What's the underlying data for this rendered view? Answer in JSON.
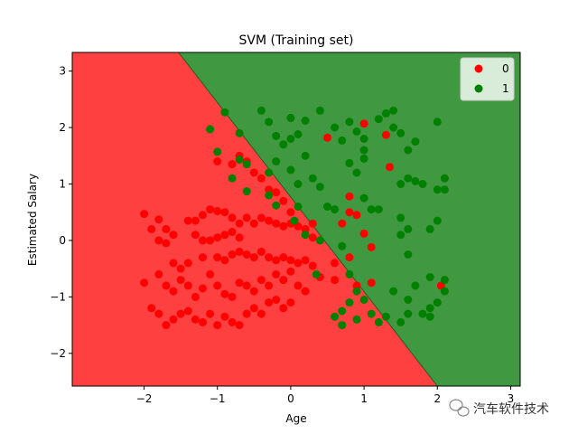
{
  "chart_data": {
    "type": "scatter",
    "title": "SVM (Training set)",
    "xlabel": "Age",
    "ylabel": "Estimated Salary",
    "xlim": [
      -2.98,
      3.13
    ],
    "ylim": [
      -2.58,
      3.33
    ],
    "x_ticks": [
      -2,
      -1,
      0,
      1,
      2,
      3
    ],
    "y_ticks": [
      -2,
      -1,
      0,
      1,
      2,
      3
    ],
    "x_tick_labels": [
      "−2",
      "−1",
      "0",
      "1",
      "2",
      "3"
    ],
    "y_tick_labels": [
      "−2",
      "−1",
      "0",
      "1",
      "2",
      "3"
    ],
    "legend_position": "top-right",
    "decision_boundary": {
      "type": "linear",
      "points": [
        [
          -1.53,
          3.33
        ],
        [
          2.0,
          -2.58
        ]
      ]
    },
    "regions": [
      {
        "class": "0",
        "color": "#ff4040",
        "side": "lower-left"
      },
      {
        "class": "1",
        "color": "#409940",
        "side": "upper-right"
      }
    ],
    "series": [
      {
        "name": "0",
        "color": "#ff0000",
        "points": [
          [
            -2.0,
            0.47
          ],
          [
            -1.8,
            0.37
          ],
          [
            -1.9,
            0.2
          ],
          [
            -1.7,
            0.2
          ],
          [
            -1.6,
            0.1
          ],
          [
            -1.4,
            0.35
          ],
          [
            -1.3,
            0.35
          ],
          [
            -1.2,
            0.45
          ],
          [
            -1.1,
            0.55
          ],
          [
            -1.0,
            0.52
          ],
          [
            -0.9,
            0.5
          ],
          [
            -0.8,
            0.4
          ],
          [
            -0.7,
            0.3
          ],
          [
            -1.3,
            0.1
          ],
          [
            -1.2,
            0.0
          ],
          [
            -1.1,
            0.0
          ],
          [
            -1.0,
            0.05
          ],
          [
            -0.9,
            0.1
          ],
          [
            -0.8,
            0.15
          ],
          [
            -0.7,
            0.05
          ],
          [
            -0.6,
            0.4
          ],
          [
            -0.5,
            0.3
          ],
          [
            -0.4,
            0.4
          ],
          [
            -0.3,
            0.35
          ],
          [
            -0.2,
            0.3
          ],
          [
            -0.1,
            0.25
          ],
          [
            0.0,
            0.3
          ],
          [
            0.1,
            0.25
          ],
          [
            0.2,
            0.2
          ],
          [
            0.3,
            0.3
          ],
          [
            -1.8,
            0.0
          ],
          [
            -1.7,
            -0.05
          ],
          [
            -1.6,
            -0.4
          ],
          [
            -1.5,
            -0.5
          ],
          [
            -1.4,
            -0.4
          ],
          [
            -1.2,
            -0.3
          ],
          [
            -1.0,
            -0.3
          ],
          [
            -0.9,
            -0.35
          ],
          [
            -0.8,
            -0.25
          ],
          [
            -0.7,
            -0.2
          ],
          [
            -0.6,
            -0.25
          ],
          [
            -0.5,
            -0.3
          ],
          [
            -0.4,
            -0.2
          ],
          [
            -0.3,
            -0.3
          ],
          [
            -0.2,
            -0.35
          ],
          [
            -0.1,
            -0.3
          ],
          [
            0.0,
            -0.35
          ],
          [
            0.1,
            -0.4
          ],
          [
            0.2,
            -0.35
          ],
          [
            0.3,
            -0.45
          ],
          [
            -2.0,
            -0.75
          ],
          [
            -1.8,
            -0.6
          ],
          [
            -1.7,
            -0.8
          ],
          [
            -1.6,
            -0.9
          ],
          [
            -1.5,
            -0.7
          ],
          [
            -1.4,
            -0.8
          ],
          [
            -1.3,
            -1.0
          ],
          [
            -1.2,
            -0.85
          ],
          [
            -1.1,
            -0.6
          ],
          [
            -1.0,
            -0.8
          ],
          [
            -0.9,
            -0.95
          ],
          [
            -0.8,
            -1.0
          ],
          [
            -0.7,
            -0.75
          ],
          [
            -0.6,
            -0.8
          ],
          [
            -0.5,
            -0.9
          ],
          [
            -0.4,
            -0.7
          ],
          [
            -0.3,
            -0.8
          ],
          [
            -0.2,
            -0.6
          ],
          [
            -0.1,
            -0.7
          ],
          [
            0.0,
            -0.55
          ],
          [
            -1.9,
            -1.2
          ],
          [
            -1.8,
            -1.3
          ],
          [
            -1.7,
            -1.5
          ],
          [
            -1.6,
            -1.4
          ],
          [
            -1.5,
            -1.3
          ],
          [
            -1.4,
            -1.25
          ],
          [
            -1.3,
            -1.4
          ],
          [
            -1.2,
            -1.45
          ],
          [
            -1.1,
            -1.3
          ],
          [
            -1.0,
            -1.5
          ],
          [
            -0.9,
            -1.35
          ],
          [
            -0.8,
            -1.45
          ],
          [
            -0.7,
            -1.5
          ],
          [
            -0.6,
            -1.3
          ],
          [
            -0.5,
            -1.2
          ],
          [
            -0.4,
            -1.3
          ],
          [
            -0.3,
            -1.1
          ],
          [
            -0.2,
            -1.05
          ],
          [
            -0.1,
            -1.2
          ],
          [
            0.0,
            -1.1
          ],
          [
            -1.0,
            1.4
          ],
          [
            -0.8,
            1.35
          ],
          [
            -0.7,
            1.5
          ],
          [
            -0.6,
            1.4
          ],
          [
            -0.5,
            1.2
          ],
          [
            -0.4,
            1.1
          ],
          [
            -0.3,
            0.9
          ],
          [
            -0.2,
            0.85
          ],
          [
            -0.1,
            0.7
          ],
          [
            0.0,
            0.5
          ],
          [
            0.1,
            -0.8
          ],
          [
            0.2,
            -0.9
          ],
          [
            0.4,
            -0.65
          ],
          [
            0.6,
            -0.7
          ],
          [
            0.8,
            -0.3
          ],
          [
            0.9,
            -0.8
          ],
          [
            1.1,
            -0.75
          ],
          [
            0.7,
            0.3
          ],
          [
            0.8,
            0.5
          ],
          [
            0.8,
            0.78
          ],
          [
            0.9,
            0.45
          ],
          [
            1.0,
            0.12
          ],
          [
            1.1,
            -0.12
          ],
          [
            0.5,
            1.82
          ],
          [
            1.0,
            2.07
          ],
          [
            1.3,
            1.87
          ],
          [
            1.35,
            1.3
          ],
          [
            2.05,
            -0.8
          ],
          [
            0.6,
            -0.4
          ],
          [
            0.3,
            0.05
          ]
        ]
      },
      {
        "name": "1",
        "color": "#008000",
        "points": [
          [
            -1.1,
            1.97
          ],
          [
            -0.9,
            2.27
          ],
          [
            -0.7,
            1.9
          ],
          [
            -1.0,
            1.57
          ],
          [
            -0.7,
            1.43
          ],
          [
            -0.6,
            1.35
          ],
          [
            -0.8,
            1.1
          ],
          [
            -0.6,
            0.87
          ],
          [
            -0.4,
            2.3
          ],
          [
            -0.3,
            2.1
          ],
          [
            -0.2,
            1.85
          ],
          [
            -0.1,
            1.7
          ],
          [
            0.0,
            1.8
          ],
          [
            -0.2,
            1.4
          ],
          [
            -0.3,
            1.2
          ],
          [
            0.0,
            1.25
          ],
          [
            0.1,
            1.0
          ],
          [
            -0.3,
            0.8
          ],
          [
            -0.2,
            0.62
          ],
          [
            0.1,
            0.6
          ],
          [
            0.0,
            2.17
          ],
          [
            0.1,
            1.88
          ],
          [
            0.2,
            2.12
          ],
          [
            0.4,
            2.3
          ],
          [
            0.2,
            1.5
          ],
          [
            0.3,
            1.1
          ],
          [
            0.4,
            0.95
          ],
          [
            0.5,
            0.6
          ],
          [
            0.6,
            2.0
          ],
          [
            0.7,
            1.77
          ],
          [
            0.8,
            2.1
          ],
          [
            0.9,
            1.93
          ],
          [
            1.0,
            1.8
          ],
          [
            1.0,
            1.6
          ],
          [
            0.8,
            1.37
          ],
          [
            1.0,
            1.45
          ],
          [
            0.9,
            1.2
          ],
          [
            1.2,
            2.15
          ],
          [
            1.4,
            2.0
          ],
          [
            1.5,
            1.9
          ],
          [
            1.6,
            1.6
          ],
          [
            1.7,
            1.75
          ],
          [
            2.0,
            2.1
          ],
          [
            1.3,
            2.25
          ],
          [
            1.4,
            2.3
          ],
          [
            1.5,
            1.0
          ],
          [
            1.6,
            1.1
          ],
          [
            1.7,
            1.05
          ],
          [
            1.8,
            1.0
          ],
          [
            2.0,
            0.9
          ],
          [
            2.1,
            1.1
          ],
          [
            2.1,
            0.9
          ],
          [
            1.1,
            0.55
          ],
          [
            1.2,
            0.55
          ],
          [
            1.0,
            0.75
          ],
          [
            1.5,
            0.4
          ],
          [
            1.6,
            0.2
          ],
          [
            1.9,
            0.2
          ],
          [
            2.0,
            0.35
          ],
          [
            1.5,
            0.1
          ],
          [
            1.6,
            -0.25
          ],
          [
            1.9,
            -0.65
          ],
          [
            2.1,
            -0.9
          ],
          [
            2.1,
            -0.7
          ],
          [
            1.4,
            -0.9
          ],
          [
            1.6,
            -1.05
          ],
          [
            1.8,
            -1.3
          ],
          [
            1.9,
            -1.2
          ],
          [
            2.0,
            -1.1
          ],
          [
            1.7,
            -0.8
          ],
          [
            0.6,
            0.55
          ],
          [
            0.4,
            0.0
          ],
          [
            0.2,
            0.1
          ],
          [
            0.7,
            -0.1
          ],
          [
            0.8,
            -0.6
          ],
          [
            0.8,
            -1.1
          ],
          [
            0.9,
            -0.9
          ],
          [
            1.0,
            -1.05
          ],
          [
            0.7,
            -1.25
          ],
          [
            0.9,
            -1.4
          ],
          [
            1.1,
            -1.3
          ],
          [
            1.2,
            -1.45
          ],
          [
            1.3,
            -1.35
          ],
          [
            1.5,
            -1.45
          ],
          [
            1.6,
            -1.3
          ],
          [
            0.6,
            -1.35
          ],
          [
            0.7,
            -1.5
          ],
          [
            1.9,
            -1.35
          ],
          [
            0.35,
            -0.6
          ],
          [
            0.05,
            0.35
          ]
        ]
      }
    ]
  },
  "watermark": {
    "text": "汽车软件技术",
    "icon": "wechat-icon"
  }
}
